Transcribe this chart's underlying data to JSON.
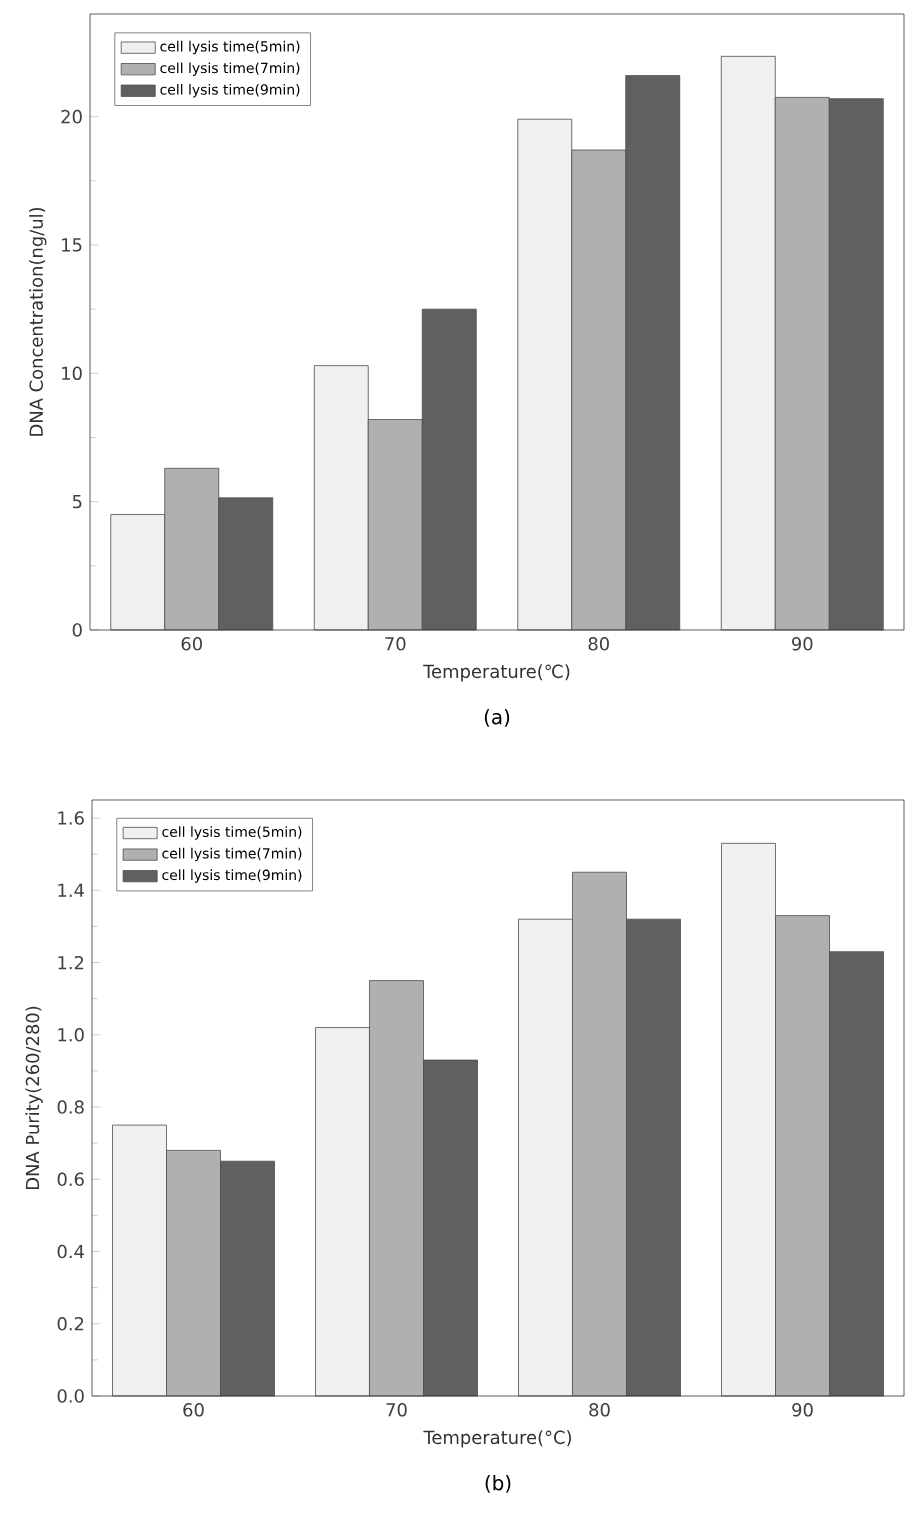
{
  "chart_data": [
    {
      "type": "bar",
      "categories": [
        "60",
        "70",
        "80",
        "90"
      ],
      "xlabel": "Temperature(℃)",
      "ylabel": "DNA Concentration(ng/ul)",
      "ylim": [
        0,
        24
      ],
      "yticks": [
        0,
        5,
        10,
        15,
        20
      ],
      "legend": "top left",
      "grid": false,
      "annotations": [
        "(a)"
      ],
      "series": [
        {
          "name": "cell lysis time(5min)",
          "color": "#f0f0f0",
          "values": [
            4.5,
            10.3,
            19.9,
            22.35
          ]
        },
        {
          "name": "cell lysis time(7min)",
          "color": "#b0b0b0",
          "values": [
            6.3,
            8.2,
            18.7,
            20.75
          ]
        },
        {
          "name": "cell lysis time(9min)",
          "color": "#606060",
          "values": [
            5.15,
            12.5,
            21.6,
            20.7
          ]
        }
      ]
    },
    {
      "type": "bar",
      "categories": [
        "60",
        "70",
        "80",
        "90"
      ],
      "xlabel": "Temperature(°C)",
      "ylabel": "DNA Purity(260/280)",
      "ylim": [
        0,
        1.65
      ],
      "yticks": [
        {
          "value": 0,
          "label": "0.0"
        },
        {
          "value": 0.2,
          "label": "0.2"
        },
        {
          "value": 0.4,
          "label": "0.4"
        },
        {
          "value": 0.6,
          "label": "0.6"
        },
        {
          "value": 0.8,
          "label": "0.8"
        },
        {
          "value": 1.0,
          "label": "1.0"
        },
        {
          "value": 1.2,
          "label": "1.2"
        },
        {
          "value": 1.4,
          "label": "1.4"
        },
        {
          "value": 1.6,
          "label": "1.6"
        }
      ],
      "legend": "top left",
      "grid": false,
      "annotations": [
        "(b)"
      ],
      "series": [
        {
          "name": "cell lysis time(5min)",
          "color": "#f0f0f0",
          "values": [
            0.75,
            1.02,
            1.32,
            1.53
          ]
        },
        {
          "name": "cell lysis time(7min)",
          "color": "#b0b0b0",
          "values": [
            0.68,
            1.15,
            1.45,
            1.33
          ]
        },
        {
          "name": "cell lysis time(9min)",
          "color": "#606060",
          "values": [
            0.65,
            0.93,
            1.32,
            1.23
          ]
        }
      ]
    }
  ]
}
